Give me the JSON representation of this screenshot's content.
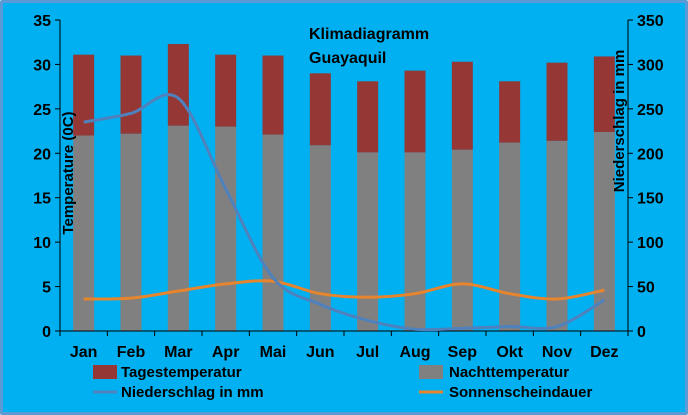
{
  "chart_data": {
    "type": "bar",
    "title": "Klimadiagramm",
    "subtitle": "Guayaquil",
    "categories": [
      "Jan",
      "Feb",
      "Mar",
      "Apr",
      "Mai",
      "Jun",
      "Jul",
      "Aug",
      "Sep",
      "Okt",
      "Nov",
      "Dez"
    ],
    "ylabel_left": "Temperature (0C)",
    "ylabel_right": "Niederschlag in mm",
    "ylim_left": [
      0,
      35
    ],
    "ylim_right": [
      0,
      350
    ],
    "yticks_left": [
      "0",
      "5",
      "10",
      "15",
      "20",
      "25",
      "30",
      "35"
    ],
    "yticks_right": [
      "0",
      "50",
      "100",
      "150",
      "200",
      "250",
      "300",
      "350"
    ],
    "grid": false,
    "legend_position": "bottom",
    "series": [
      {
        "name": "Nachttemperatur",
        "type": "bar-stacked-base",
        "axis": "left",
        "color": "#808080",
        "values": [
          22.0,
          22.2,
          23.1,
          23.0,
          22.1,
          20.9,
          20.1,
          20.1,
          20.4,
          21.2,
          21.4,
          22.4
        ]
      },
      {
        "name": "Tagestemperatur",
        "type": "bar-total",
        "axis": "left",
        "color": "#953735",
        "values": [
          31.1,
          31.0,
          32.3,
          31.1,
          31.0,
          29.0,
          28.1,
          29.3,
          30.3,
          28.1,
          30.2,
          30.9
        ]
      },
      {
        "name": "Niederschlag in mm",
        "type": "line",
        "axis": "right",
        "color": "#4f81bd",
        "values": [
          235,
          245,
          262,
          160,
          60,
          30,
          12,
          2,
          3,
          5,
          5,
          35
        ]
      },
      {
        "name": "Sonnenscheindauer",
        "type": "line",
        "axis": "left",
        "color": "#e6852d",
        "values": [
          3.6,
          3.7,
          4.5,
          5.3,
          5.6,
          4.2,
          3.8,
          4.2,
          5.3,
          4.2,
          3.6,
          4.6
        ]
      }
    ]
  }
}
